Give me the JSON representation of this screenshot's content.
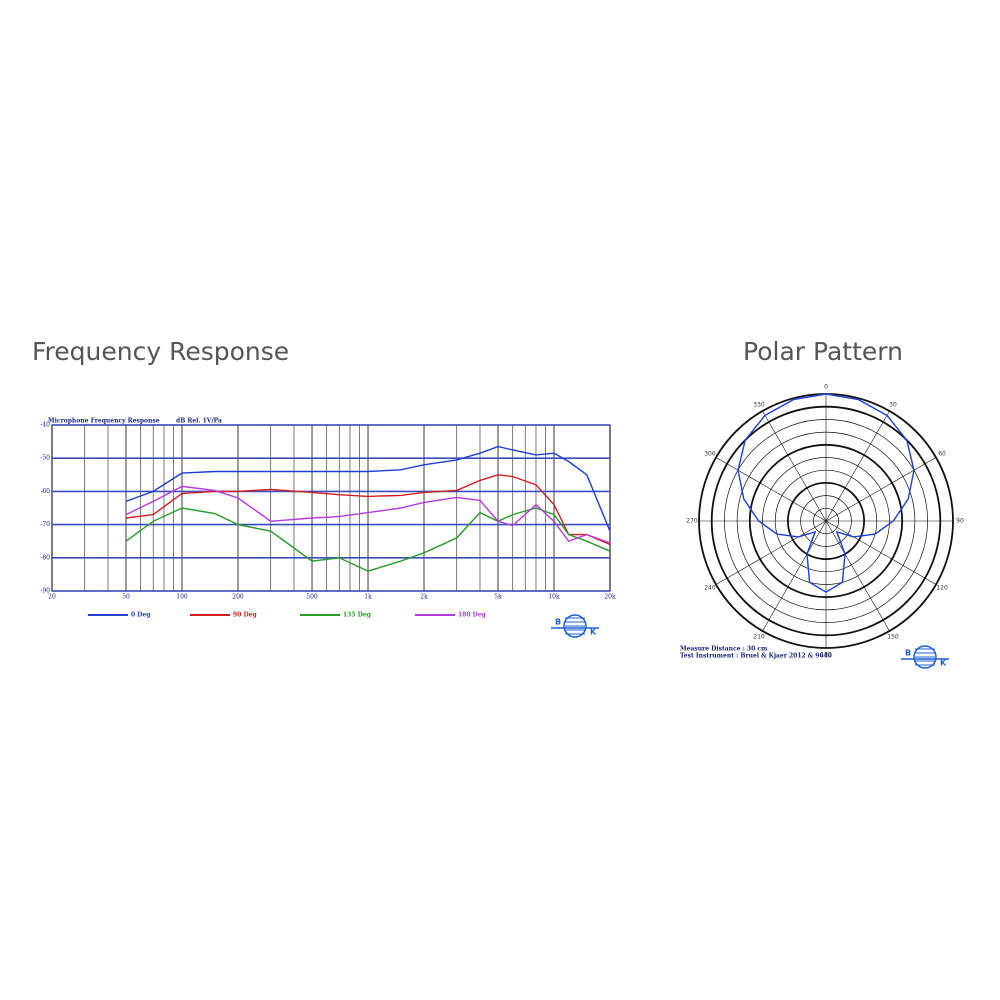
{
  "chart_data": [
    {
      "type": "line",
      "heading": "Frequency Response",
      "title": "Microphone Frequency Response",
      "ylabel": "dB Rel. 1V/Pa",
      "log_x": true,
      "xlim": [
        20,
        20000
      ],
      "xticks": [
        20,
        50,
        100,
        200,
        500,
        {
          "value": 1000,
          "label": "1k"
        },
        {
          "value": 2000,
          "label": "2k"
        },
        {
          "value": 5000,
          "label": "5k"
        },
        {
          "value": 10000,
          "label": "10k"
        },
        {
          "value": 20000,
          "label": "20k"
        }
      ],
      "x_minor_ticks": [
        30,
        40,
        60,
        70,
        80,
        90,
        300,
        400,
        600,
        700,
        800,
        900,
        3000,
        4000,
        6000,
        7000,
        8000,
        9000
      ],
      "ylim": [
        -90,
        -40
      ],
      "yticks": [
        -40,
        -50,
        -60,
        -70,
        -80,
        -90
      ],
      "grid": true,
      "x": [
        50,
        70,
        100,
        150,
        200,
        300,
        500,
        700,
        1000,
        1500,
        2000,
        3000,
        4000,
        5000,
        6000,
        8000,
        10000,
        12000,
        15000,
        20000
      ],
      "series": [
        {
          "name": "0 Deg",
          "color": "#1f3fd0",
          "values": [
            -63,
            -60,
            -54.5,
            -54,
            -54,
            -54,
            -54,
            -54,
            -54,
            -53.5,
            -52,
            -50.5,
            -48.5,
            -46.5,
            -47.5,
            -49,
            -48.5,
            -51,
            -55,
            -72
          ]
        },
        {
          "name": "90 Deg",
          "color": "#d01f1f",
          "values": [
            -68,
            -67,
            -60.6,
            -60,
            -60,
            -59.4,
            -60.3,
            -61,
            -61.5,
            -61.2,
            -60.3,
            -59.7,
            -56.7,
            -55,
            -55.5,
            -58,
            -64,
            -73,
            -73,
            -76
          ]
        },
        {
          "name": "135 Deg",
          "color": "#2a9a2a",
          "values": [
            -75,
            -69,
            -65,
            -66.7,
            -70,
            -72,
            -81,
            -80,
            -84,
            -81,
            -78.5,
            -74,
            -66.4,
            -69,
            -67,
            -65,
            -67,
            -73,
            -75,
            -78
          ]
        },
        {
          "name": "180 Deg",
          "color": "#b43be0",
          "values": [
            -67,
            -63,
            -58.5,
            -59.7,
            -62,
            -69,
            -68,
            -67.6,
            -66.4,
            -65,
            -63.3,
            -61.8,
            -62.7,
            -69,
            -70.3,
            -64,
            -69,
            -75,
            -73,
            -75.5
          ]
        }
      ]
    },
    {
      "type": "polar",
      "heading": "Polar Pattern",
      "color": "#1f3fd0",
      "angle_ticks": [
        0,
        30,
        60,
        90,
        120,
        150,
        180,
        210,
        240,
        270,
        300,
        330
      ],
      "rlim": [
        0,
        1
      ],
      "rticks": [
        0.1,
        0.2,
        0.3,
        0.4,
        0.5,
        0.6,
        0.7,
        0.8,
        0.9,
        1.0
      ],
      "theta": [
        0,
        15,
        30,
        45,
        60,
        75,
        90,
        105,
        120,
        135,
        150,
        165,
        180,
        195,
        210,
        225,
        240,
        255,
        270,
        285,
        300,
        315,
        330,
        345,
        360
      ],
      "values": [
        1.0,
        0.99,
        0.96,
        0.9,
        0.8,
        0.67,
        0.53,
        0.4,
        0.25,
        0.12,
        0.3,
        0.5,
        0.56,
        0.5,
        0.3,
        0.12,
        0.25,
        0.4,
        0.53,
        0.67,
        0.8,
        0.9,
        0.96,
        0.99,
        1.0
      ],
      "notes": [
        "Measure Distance : 30 cm",
        "Test Instrument : Bruel & Kjaer 2012 & 9640"
      ]
    }
  ],
  "logo": {
    "left": "B",
    "right": "K"
  }
}
